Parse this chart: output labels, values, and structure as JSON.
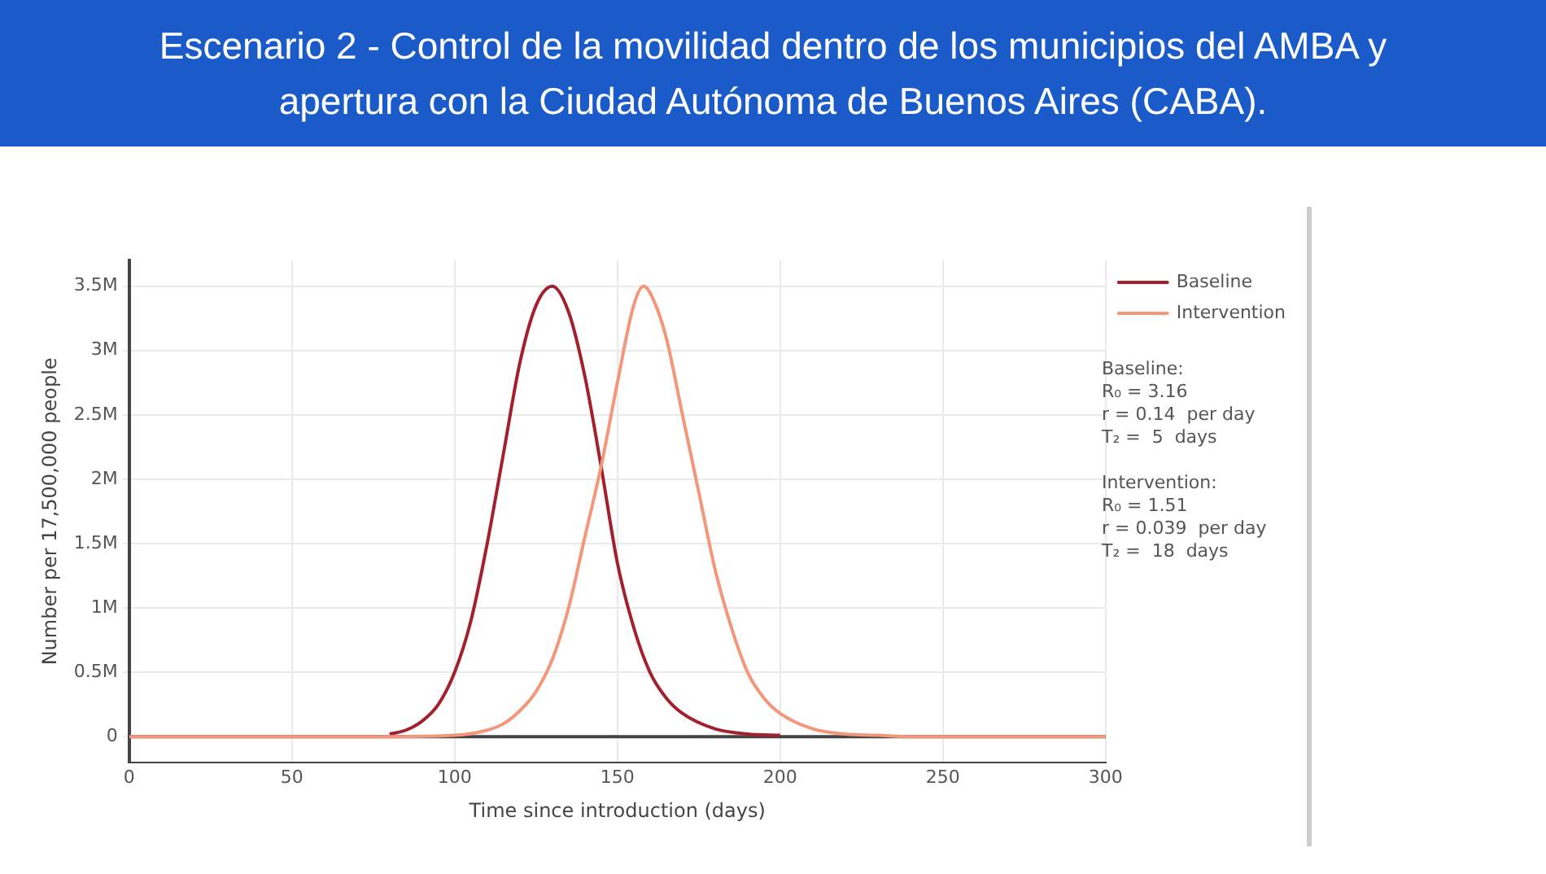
{
  "chart_data": {
    "type": "line",
    "title": "Escenario 2  - Control de la movilidad dentro de los municipios del AMBA y apertura con la Ciudad Autónoma de Buenos Aires (CABA).",
    "xlabel": "Time since introduction (days)",
    "ylabel": "Number per 17,500,000 people",
    "series": [
      {
        "name": "Baseline",
        "color": "#a3202f",
        "x": [
          80,
          85,
          90,
          95,
          100,
          105,
          110,
          115,
          120,
          125,
          130,
          135,
          140,
          145,
          150,
          155,
          160,
          165,
          170,
          180,
          190,
          200
        ],
        "values": [
          20000,
          50000,
          120000,
          250000,
          500000,
          900000,
          1500000,
          2200000,
          2900000,
          3350000,
          3500000,
          3300000,
          2800000,
          2100000,
          1350000,
          850000,
          500000,
          300000,
          180000,
          60000,
          20000,
          10000
        ]
      },
      {
        "name": "Intervention",
        "color": "#f4967a",
        "x": [
          0,
          40,
          80,
          100,
          110,
          115,
          120,
          125,
          130,
          135,
          140,
          145,
          150,
          155,
          158,
          160,
          165,
          170,
          175,
          180,
          185,
          190,
          195,
          200,
          210,
          220,
          230,
          240,
          270,
          300
        ],
        "values": [
          0,
          0,
          0,
          10000,
          50000,
          100000,
          200000,
          350000,
          600000,
          1000000,
          1550000,
          2100000,
          2750000,
          3350000,
          3500000,
          3450000,
          3100000,
          2500000,
          1900000,
          1300000,
          850000,
          500000,
          300000,
          180000,
          60000,
          20000,
          10000,
          0,
          0,
          0
        ]
      }
    ],
    "xlim": [
      0,
      300
    ],
    "xticks": [
      0,
      50,
      100,
      150,
      200,
      250,
      300
    ],
    "ylim": [
      -200000,
      3700000
    ],
    "yticks": [
      0,
      {
        "value": 500000,
        "label": "0.5M"
      },
      {
        "value": 1000000,
        "label": "1M"
      },
      {
        "value": 1500000,
        "label": "1.5M"
      },
      {
        "value": 2000000,
        "label": "2M"
      },
      {
        "value": 2500000,
        "label": "2.5M"
      },
      {
        "value": 3000000,
        "label": "3M"
      },
      {
        "value": 3500000,
        "label": "3.5M"
      }
    ],
    "grid": true,
    "legend": "top right",
    "marker": "none",
    "line_style": "solid",
    "annotations": [
      "Baseline:\nR₀ = 3.16\nr = 0.14  per day\nT₂ =  5  days",
      "Intervention:\nR₀ = 1.51\nr = 0.039  per day\nT₂ =  18  days"
    ]
  }
}
